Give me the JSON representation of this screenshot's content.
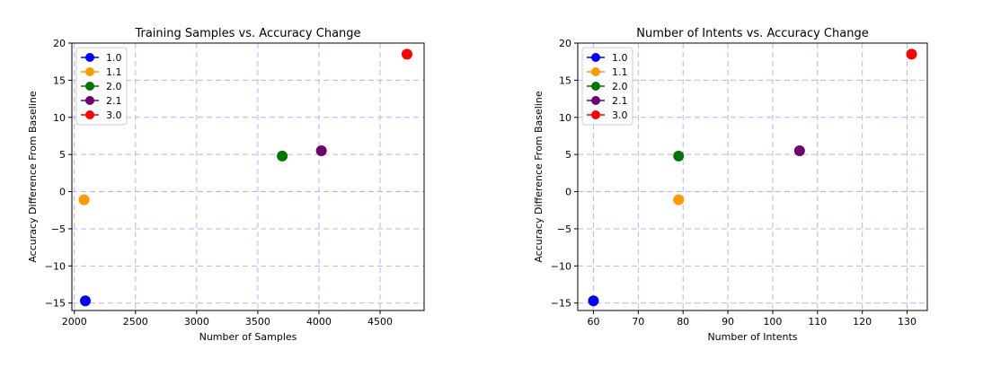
{
  "chart_data": [
    {
      "type": "scatter",
      "title": "Training Samples vs. Accuracy Change",
      "xlabel": "Number of Samples",
      "ylabel": "Accuracy Difference From Baseline",
      "xlim": [
        1980,
        4860
      ],
      "ylim": [
        -16,
        20
      ],
      "xticks": [
        2000,
        2500,
        3000,
        3500,
        4000,
        4500
      ],
      "yticks": [
        -15,
        -10,
        -5,
        0,
        5,
        10,
        15,
        20
      ],
      "grid": true,
      "legend_position": "top-left",
      "series": [
        {
          "name": "1.0",
          "color": "#0000ff",
          "x": [
            2090
          ],
          "y": [
            -14.7
          ]
        },
        {
          "name": "1.1",
          "color": "#ff9900",
          "x": [
            2080
          ],
          "y": [
            -1.1
          ]
        },
        {
          "name": "2.0",
          "color": "#007500",
          "x": [
            3700
          ],
          "y": [
            4.8
          ]
        },
        {
          "name": "2.1",
          "color": "#6d006d",
          "x": [
            4020
          ],
          "y": [
            5.5
          ]
        },
        {
          "name": "3.0",
          "color": "#ff0000",
          "x": [
            4720
          ],
          "y": [
            18.5
          ]
        }
      ]
    },
    {
      "type": "scatter",
      "title": "Number of Intents vs. Accuracy Change",
      "xlabel": "Number of Intents",
      "ylabel": "Accuracy Difference From Baseline",
      "xlim": [
        56.5,
        134.5
      ],
      "ylim": [
        -16,
        20
      ],
      "xticks": [
        60,
        70,
        80,
        90,
        100,
        110,
        120,
        130
      ],
      "yticks": [
        -15,
        -10,
        -5,
        0,
        5,
        10,
        15,
        20
      ],
      "grid": true,
      "legend_position": "top-left",
      "series": [
        {
          "name": "1.0",
          "color": "#0000ff",
          "x": [
            60
          ],
          "y": [
            -14.7
          ]
        },
        {
          "name": "1.1",
          "color": "#ff9900",
          "x": [
            79
          ],
          "y": [
            -1.1
          ]
        },
        {
          "name": "2.0",
          "color": "#007500",
          "x": [
            79
          ],
          "y": [
            4.8
          ]
        },
        {
          "name": "2.1",
          "color": "#6d006d",
          "x": [
            106
          ],
          "y": [
            5.5
          ]
        },
        {
          "name": "3.0",
          "color": "#ff0000",
          "x": [
            131
          ],
          "y": [
            18.5
          ]
        }
      ]
    }
  ]
}
